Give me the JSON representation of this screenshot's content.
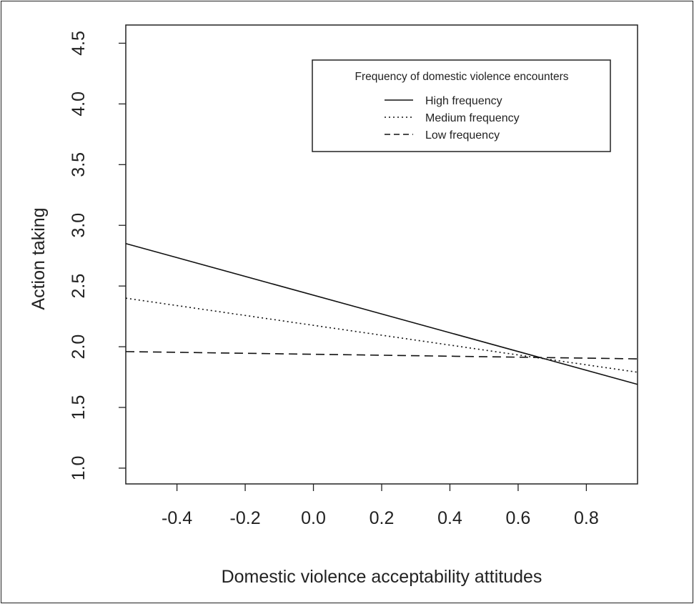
{
  "chart_data": {
    "type": "line",
    "title": "",
    "xlabel": "Domestic violence acceptability attitudes",
    "ylabel": "Action taking",
    "xlim": [
      -0.55,
      0.95
    ],
    "ylim": [
      0.87,
      4.65
    ],
    "xticks": [
      -0.4,
      -0.2,
      0.0,
      0.2,
      0.4,
      0.6,
      0.8
    ],
    "xtick_labels": [
      "-0.4",
      "-0.2",
      "0.0",
      "0.2",
      "0.4",
      "0.6",
      "0.8"
    ],
    "yticks": [
      1.0,
      1.5,
      2.0,
      2.5,
      3.0,
      3.5,
      4.0,
      4.5
    ],
    "ytick_labels": [
      "1.0",
      "1.5",
      "2.0",
      "2.5",
      "3.0",
      "3.5",
      "4.0",
      "4.5"
    ],
    "grid": false,
    "legend": {
      "title": "Frequency of domestic violence encounters",
      "placement": "top-right"
    },
    "series": [
      {
        "name": "High frequency",
        "style": "solid",
        "x": [
          -0.55,
          0.95
        ],
        "y": [
          2.85,
          1.69
        ]
      },
      {
        "name": "Medium frequency",
        "style": "dotted",
        "x": [
          -0.55,
          0.95
        ],
        "y": [
          2.4,
          1.79
        ]
      },
      {
        "name": "Low frequency",
        "style": "dashed",
        "x": [
          -0.55,
          0.95
        ],
        "y": [
          1.96,
          1.9
        ]
      }
    ]
  }
}
